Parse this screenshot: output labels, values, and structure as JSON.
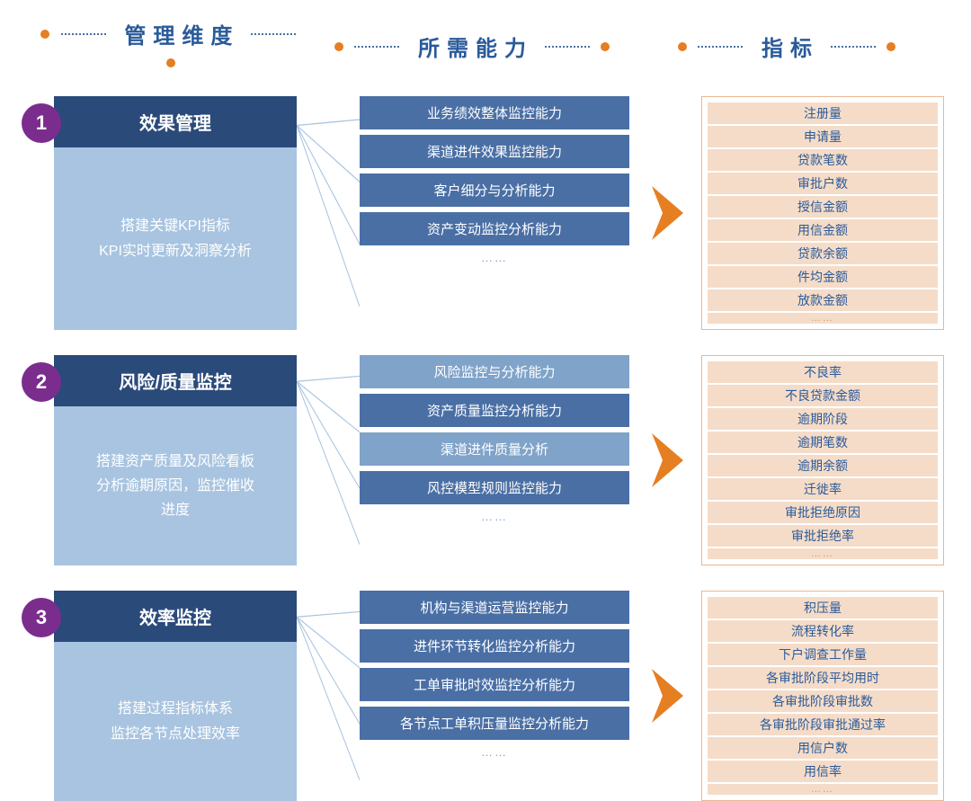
{
  "headers": {
    "col1": "管理维度",
    "col2": "所需能力",
    "col3": "指标"
  },
  "colors": {
    "header_text": "#2a5a9a",
    "header_dot": "#e67e22",
    "number_bg": "#7b2d8e",
    "mgmt_title_bg": "#2a4a7a",
    "mgmt_desc_bg": "#a8c4e0",
    "cap_dark": "#4a6fa5",
    "cap_light": "#7fa3c9",
    "arrow": "#e67e22",
    "ind_border": "#e8b894",
    "ind_bg": "#f5dcc8",
    "ind_text": "#2a5a9a",
    "connector": "#a8c4e0"
  },
  "rows": [
    {
      "number": "1",
      "title": "效果管理",
      "desc": [
        "搭建关键KPI指标",
        "KPI实时更新及洞察分析"
      ],
      "capabilities": [
        {
          "text": "业务绩效整体监控能力",
          "shade": "dark"
        },
        {
          "text": "渠道进件效果监控能力",
          "shade": "dark"
        },
        {
          "text": "客户细分与分析能力",
          "shade": "dark"
        },
        {
          "text": "资产变动监控分析能力",
          "shade": "dark"
        }
      ],
      "cap_ellipsis": "……",
      "indicators": [
        "注册量",
        "申请量",
        "贷款笔数",
        "审批户数",
        "授信金额",
        "用信金额",
        "贷款余额",
        "件均金额",
        "放款金额"
      ],
      "ind_ellipsis": "……"
    },
    {
      "number": "2",
      "title": "风险/质量监控",
      "desc": [
        "搭建资产质量及风险看板",
        "分析逾期原因，监控催收",
        "进度"
      ],
      "capabilities": [
        {
          "text": "风险监控与分析能力",
          "shade": "light"
        },
        {
          "text": "资产质量监控分析能力",
          "shade": "dark"
        },
        {
          "text": "渠道进件质量分析",
          "shade": "light"
        },
        {
          "text": "风控模型规则监控能力",
          "shade": "dark"
        }
      ],
      "cap_ellipsis": "……",
      "indicators": [
        "不良率",
        "不良贷款金额",
        "逾期阶段",
        "逾期笔数",
        "逾期余额",
        "迁徙率",
        "审批拒绝原因",
        "审批拒绝率"
      ],
      "ind_ellipsis": "……"
    },
    {
      "number": "3",
      "title": "效率监控",
      "desc": [
        "搭建过程指标体系",
        "监控各节点处理效率"
      ],
      "capabilities": [
        {
          "text": "机构与渠道运营监控能力",
          "shade": "dark"
        },
        {
          "text": "进件环节转化监控分析能力",
          "shade": "dark"
        },
        {
          "text": "工单审批时效监控分析能力",
          "shade": "dark"
        },
        {
          "text": "各节点工单积压量监控分析能力",
          "shade": "dark"
        }
      ],
      "cap_ellipsis": "……",
      "indicators": [
        "积压量",
        "流程转化率",
        "下户调查工作量",
        "各审批阶段平均用时",
        "各审批阶段审批数",
        "各审批阶段审批通过率",
        "用信户数",
        "用信率"
      ],
      "ind_ellipsis": "……"
    }
  ]
}
